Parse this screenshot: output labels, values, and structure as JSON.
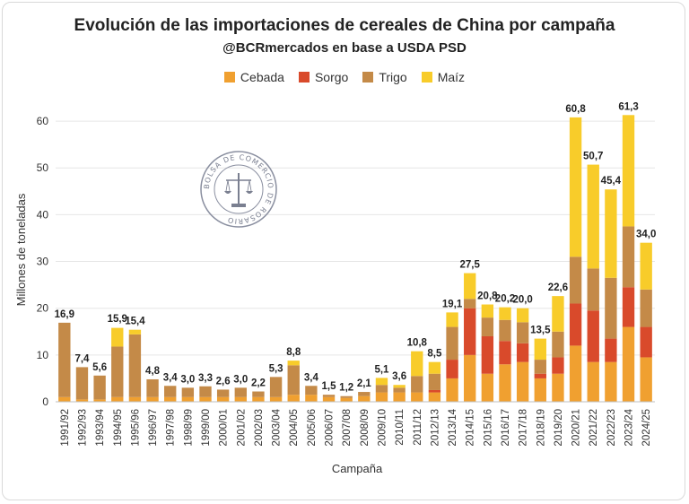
{
  "chart_data": {
    "type": "bar",
    "stacked": true,
    "title": "Evolución de las importaciones de cereales de China por campaña",
    "subtitle": "@BCRmercados en base a USDA PSD",
    "xlabel": "Campaña",
    "ylabel": "Millones de toneladas",
    "ylim": [
      0,
      65
    ],
    "yticks": [
      "0",
      "10",
      "20",
      "30",
      "40",
      "50",
      "60"
    ],
    "categories": [
      "1991/92",
      "1992/93",
      "1993/94",
      "1994/95",
      "1995/96",
      "1996/97",
      "1997/98",
      "1998/99",
      "1999/00",
      "2000/01",
      "2001/02",
      "2002/03",
      "2003/04",
      "2004/05",
      "2005/06",
      "2006/07",
      "2007/08",
      "2008/09",
      "2009/10",
      "2010/11",
      "2011/12",
      "2012/13",
      "2013/14",
      "2014/15",
      "2015/16",
      "2016/17",
      "2017/18",
      "2018/19",
      "2019/20",
      "2020/21",
      "2021/22",
      "2022/23",
      "2023/24",
      "2024/25"
    ],
    "series": [
      {
        "name": "Cebada",
        "color": "#F0A030",
        "values": [
          1.0,
          0.5,
          0.5,
          1.0,
          1.0,
          1.0,
          1.0,
          1.0,
          1.0,
          1.0,
          1.0,
          1.0,
          1.0,
          1.5,
          1.5,
          1.0,
          0.8,
          1.2,
          2.0,
          2.0,
          2.0,
          2.0,
          5.0,
          10.0,
          6.0,
          8.0,
          8.5,
          5.0,
          6.0,
          12.0,
          8.5,
          8.5,
          16.0,
          9.5
        ]
      },
      {
        "name": "Sorgo",
        "color": "#D94A2B",
        "values": [
          0,
          0,
          0,
          0,
          0,
          0,
          0,
          0,
          0,
          0,
          0,
          0,
          0,
          0,
          0,
          0,
          0,
          0,
          0,
          0,
          0,
          0.5,
          4.0,
          10.0,
          8.0,
          5.0,
          4.0,
          1.0,
          3.5,
          9.0,
          11.0,
          5.0,
          8.5,
          6.5
        ]
      },
      {
        "name": "Trigo",
        "color": "#C48A48",
        "values": [
          15.9,
          6.9,
          5.1,
          10.8,
          13.4,
          3.8,
          2.4,
          2.0,
          2.3,
          1.6,
          2.0,
          1.2,
          4.3,
          6.3,
          1.9,
          0.5,
          0.4,
          0.9,
          1.6,
          1.0,
          3.5,
          3.5,
          7.0,
          2.0,
          4.0,
          4.5,
          4.5,
          3.0,
          5.5,
          10.0,
          9.0,
          13.0,
          13.0,
          8.0
        ]
      },
      {
        "name": "Maíz",
        "color": "#F8CC2A",
        "values": [
          0,
          0,
          0,
          4.0,
          1.0,
          0,
          0,
          0,
          0,
          0,
          0,
          0,
          0,
          1.0,
          0,
          0,
          0,
          0,
          1.5,
          0.6,
          5.3,
          2.5,
          3.1,
          5.5,
          2.8,
          2.7,
          3.0,
          4.5,
          7.6,
          29.8,
          22.2,
          18.9,
          23.8,
          10.0
        ]
      }
    ],
    "totals": [
      "16,9",
      "7,4",
      "5,6",
      "15,9",
      "15,4",
      "4,8",
      "3,4",
      "3,0",
      "3,3",
      "2,6",
      "3,0",
      "2,2",
      "5,3",
      "8,8",
      "3,4",
      "1,5",
      "1,2",
      "2,1",
      "5,1",
      "3,6",
      "10,8",
      "8,5",
      "19,1",
      "27,5",
      "20,8",
      "20,2",
      "20,0",
      "13,5",
      "22,6",
      "60,8",
      "50,7",
      "45,4",
      "61,3",
      "34,0"
    ],
    "totals_values": [
      16.9,
      7.4,
      5.6,
      15.9,
      15.4,
      4.8,
      3.4,
      3.0,
      3.3,
      2.6,
      3.0,
      2.2,
      5.3,
      8.8,
      3.4,
      1.5,
      1.2,
      2.1,
      5.1,
      3.6,
      10.8,
      8.5,
      19.1,
      27.5,
      20.8,
      20.2,
      20.0,
      13.5,
      22.6,
      60.8,
      50.7,
      45.4,
      61.3,
      34.0
    ],
    "legend_position": "top"
  },
  "watermark": {
    "text": "BOLSA DE COMERCIO DE ROSARIO"
  }
}
